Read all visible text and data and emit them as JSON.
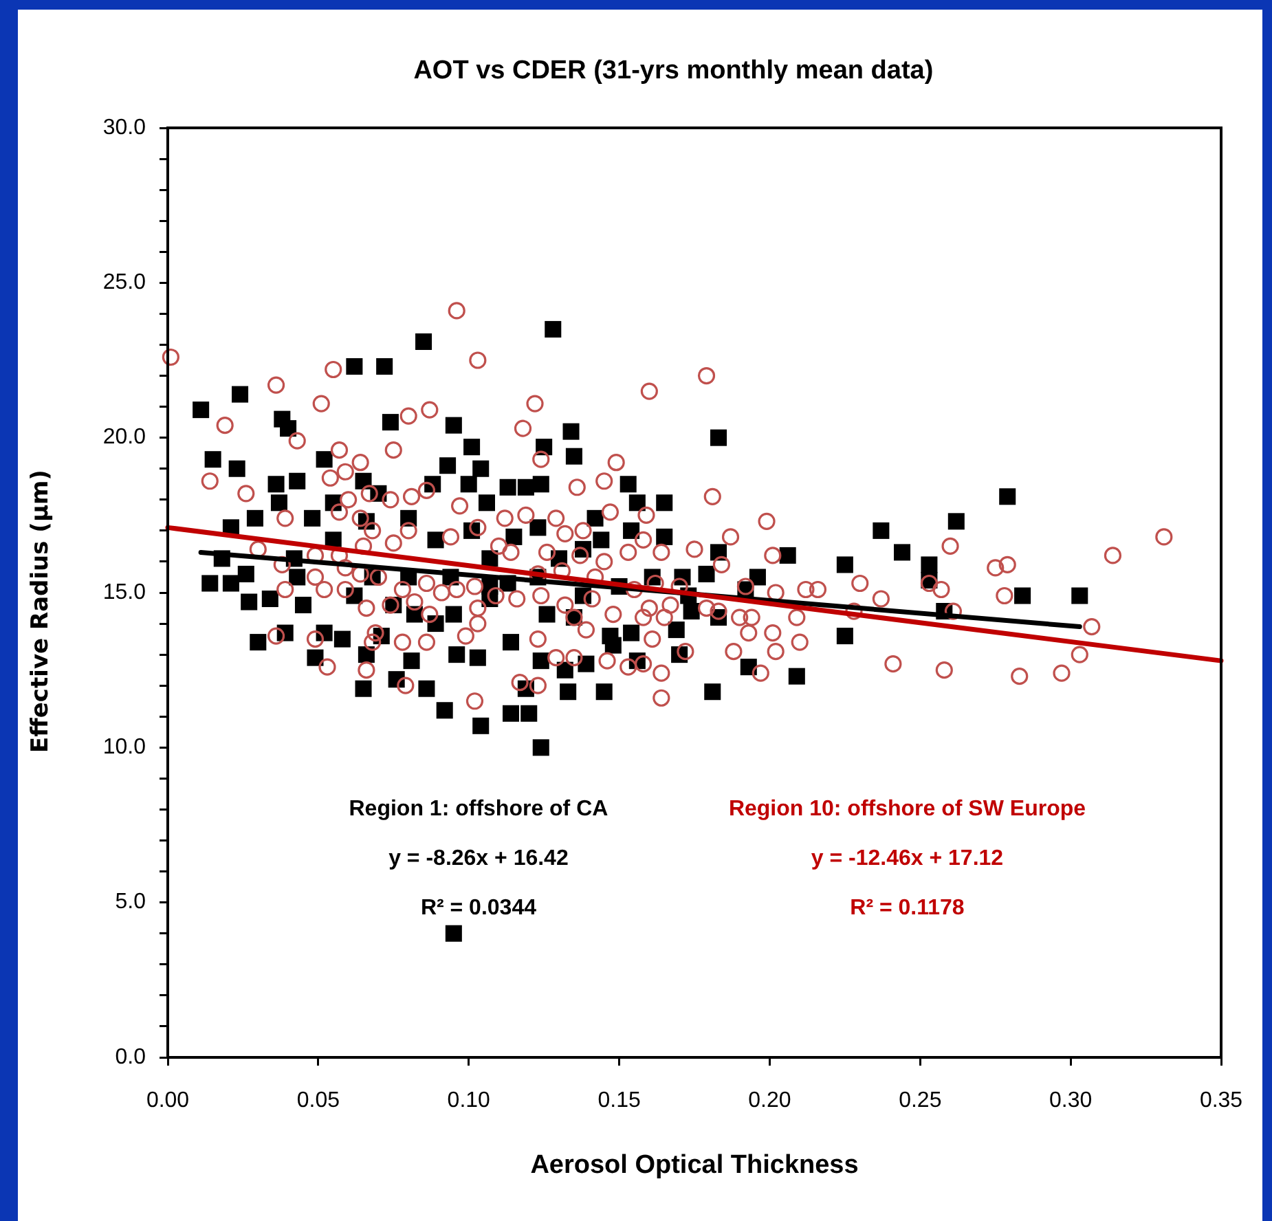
{
  "chart_data": {
    "type": "scatter",
    "title": "AOT vs CDER (31-yrs monthly mean data)",
    "xlabel": "Aerosol Optical Thickness",
    "ylabel": "Effective Radius (μm)",
    "annotations": [
      "Region 1: offshore of CA",
      "y = -8.26x + 16.42",
      "R² = 0.0344",
      "Region 10: offshore of SW Europe",
      "y = -12.46x + 17.12",
      "R² = 0.1178"
    ],
    "xlim": [
      0,
      0.35
    ],
    "ylim": [
      0,
      30
    ],
    "xticks": [
      {
        "value": 0,
        "label": "0.00"
      },
      0.05,
      {
        "value": 0.1,
        "label": "0.10"
      },
      0.15,
      {
        "value": 0.2,
        "label": "0.20"
      },
      0.25,
      {
        "value": 0.3,
        "label": "0.30"
      },
      0.35
    ],
    "yticks": [
      {
        "value": 0,
        "label": "0.0"
      },
      {
        "value": 1,
        "label": null
      },
      {
        "value": 2,
        "label": null
      },
      {
        "value": 3,
        "label": null
      },
      {
        "value": 4,
        "label": null
      },
      {
        "value": 5,
        "label": "5.0"
      },
      {
        "value": 6,
        "label": null
      },
      {
        "value": 7,
        "label": null
      },
      {
        "value": 8,
        "label": null
      },
      {
        "value": 9,
        "label": null
      },
      {
        "value": 10,
        "label": "10.0"
      },
      {
        "value": 11,
        "label": null
      },
      {
        "value": 12,
        "label": null
      },
      {
        "value": 13,
        "label": null
      },
      {
        "value": 14,
        "label": null
      },
      {
        "value": 15,
        "label": "15.0"
      },
      {
        "value": 16,
        "label": null
      },
      {
        "value": 17,
        "label": null
      },
      {
        "value": 18,
        "label": null
      },
      {
        "value": 19,
        "label": null
      },
      {
        "value": 20,
        "label": "20.0"
      },
      {
        "value": 21,
        "label": null
      },
      {
        "value": 22,
        "label": null
      },
      {
        "value": 23,
        "label": null
      },
      {
        "value": 24,
        "label": null
      },
      {
        "value": 25,
        "label": "25.0"
      },
      {
        "value": 26,
        "label": null
      },
      {
        "value": 27,
        "label": null
      },
      {
        "value": 28,
        "label": null
      },
      {
        "value": 29,
        "label": null
      },
      {
        "value": 30,
        "label": "30.0"
      }
    ],
    "series": [
      {
        "color": "#000000",
        "marker": "square",
        "x": [
          0.011,
          0.015,
          0.024,
          0.062,
          0.072,
          0.085,
          0.128,
          0.038,
          0.04,
          0.074,
          0.095,
          0.101,
          0.023,
          0.052,
          0.093,
          0.104,
          0.036,
          0.043,
          0.065,
          0.088,
          0.1,
          0.106,
          0.037,
          0.048,
          0.021,
          0.029,
          0.055,
          0.07,
          0.08,
          0.018,
          0.014,
          0.021,
          0.026,
          0.027,
          0.034,
          0.03,
          0.039,
          0.042,
          0.043,
          0.045,
          0.052,
          0.058,
          0.049,
          0.066,
          0.065,
          0.076,
          0.086,
          0.092,
          0.104,
          0.081,
          0.096,
          0.103,
          0.071,
          0.089,
          0.075,
          0.082,
          0.095,
          0.062,
          0.068,
          0.08,
          0.094,
          0.055,
          0.066,
          0.089,
          0.101,
          0.107,
          0.107,
          0.134,
          0.135,
          0.125,
          0.183,
          0.113,
          0.119,
          0.124,
          0.153,
          0.165,
          0.156,
          0.154,
          0.165,
          0.206,
          0.196,
          0.183,
          0.179,
          0.171,
          0.123,
          0.115,
          0.142,
          0.144,
          0.138,
          0.13,
          0.123,
          0.113,
          0.107,
          0.138,
          0.15,
          0.161,
          0.173,
          0.183,
          0.192,
          0.169,
          0.174,
          0.154,
          0.147,
          0.135,
          0.126,
          0.114,
          0.124,
          0.132,
          0.139,
          0.148,
          0.156,
          0.17,
          0.119,
          0.133,
          0.145,
          0.181,
          0.193,
          0.209,
          0.114,
          0.12,
          0.124,
          0.279,
          0.262,
          0.237,
          0.244,
          0.225,
          0.253,
          0.253,
          0.284,
          0.303,
          0.258,
          0.225,
          0.095
        ],
        "values": [
          20.9,
          19.3,
          21.4,
          22.3,
          22.3,
          23.1,
          23.5,
          20.6,
          20.3,
          20.5,
          20.4,
          19.7,
          19.0,
          19.3,
          19.1,
          19.0,
          18.5,
          18.6,
          18.6,
          18.5,
          18.5,
          17.9,
          17.9,
          17.4,
          17.1,
          17.4,
          17.9,
          18.2,
          17.4,
          16.1,
          15.3,
          15.3,
          15.6,
          14.7,
          14.8,
          13.4,
          13.7,
          16.1,
          15.5,
          14.6,
          13.7,
          13.5,
          12.9,
          13.0,
          11.9,
          12.2,
          11.9,
          11.2,
          10.7,
          12.8,
          13.0,
          12.9,
          13.6,
          14.0,
          14.6,
          14.3,
          14.3,
          14.9,
          15.5,
          15.5,
          15.5,
          16.7,
          17.3,
          16.7,
          17.0,
          16.1,
          14.8,
          20.2,
          19.4,
          19.7,
          20.0,
          18.4,
          18.4,
          18.5,
          18.5,
          17.9,
          17.9,
          17.0,
          16.8,
          16.2,
          15.5,
          16.3,
          15.6,
          15.5,
          17.1,
          16.8,
          17.4,
          16.7,
          16.4,
          16.1,
          15.5,
          15.3,
          15.2,
          14.9,
          15.2,
          15.5,
          14.9,
          14.2,
          15.1,
          13.8,
          14.4,
          13.7,
          13.6,
          14.2,
          14.3,
          13.4,
          12.8,
          12.5,
          12.7,
          13.3,
          12.8,
          13.0,
          11.9,
          11.8,
          11.8,
          11.8,
          12.6,
          12.3,
          11.1,
          11.1,
          10.0,
          18.1,
          17.3,
          17.0,
          16.3,
          15.9,
          15.9,
          15.4,
          14.9,
          14.9,
          14.4,
          13.6,
          4.0
        ]
      },
      {
        "color": "#c0504d",
        "marker": "circle",
        "x": [
          0.001,
          0.096,
          0.103,
          0.055,
          0.036,
          0.051,
          0.019,
          0.043,
          0.08,
          0.087,
          0.075,
          0.057,
          0.064,
          0.014,
          0.026,
          0.054,
          0.059,
          0.06,
          0.067,
          0.057,
          0.074,
          0.081,
          0.086,
          0.097,
          0.064,
          0.068,
          0.039,
          0.03,
          0.038,
          0.039,
          0.049,
          0.057,
          0.065,
          0.075,
          0.08,
          0.094,
          0.103,
          0.049,
          0.059,
          0.064,
          0.07,
          0.078,
          0.086,
          0.091,
          0.096,
          0.102,
          0.052,
          0.059,
          0.074,
          0.082,
          0.087,
          0.103,
          0.103,
          0.066,
          0.099,
          0.069,
          0.068,
          0.078,
          0.086,
          0.049,
          0.036,
          0.053,
          0.066,
          0.079,
          0.102,
          0.179,
          0.16,
          0.122,
          0.118,
          0.124,
          0.149,
          0.136,
          0.145,
          0.181,
          0.199,
          0.187,
          0.201,
          0.159,
          0.147,
          0.119,
          0.112,
          0.129,
          0.138,
          0.132,
          0.158,
          0.164,
          0.175,
          0.184,
          0.11,
          0.114,
          0.126,
          0.137,
          0.145,
          0.153,
          0.123,
          0.131,
          0.142,
          0.162,
          0.17,
          0.192,
          0.202,
          0.212,
          0.109,
          0.116,
          0.124,
          0.132,
          0.141,
          0.148,
          0.155,
          0.16,
          0.167,
          0.179,
          0.183,
          0.19,
          0.194,
          0.193,
          0.201,
          0.209,
          0.21,
          0.202,
          0.123,
          0.135,
          0.139,
          0.158,
          0.165,
          0.161,
          0.129,
          0.135,
          0.146,
          0.153,
          0.158,
          0.164,
          0.172,
          0.188,
          0.197,
          0.117,
          0.123,
          0.164,
          0.331,
          0.314,
          0.26,
          0.279,
          0.275,
          0.278,
          0.253,
          0.257,
          0.261,
          0.23,
          0.237,
          0.228,
          0.216,
          0.307,
          0.303,
          0.297,
          0.283,
          0.258,
          0.241
        ],
        "values": [
          22.6,
          24.1,
          22.5,
          22.2,
          21.7,
          21.1,
          20.4,
          19.9,
          20.7,
          20.9,
          19.6,
          19.6,
          19.2,
          18.6,
          18.2,
          18.7,
          18.9,
          18.0,
          18.2,
          17.6,
          18.0,
          18.1,
          18.3,
          17.8,
          17.4,
          17.0,
          17.4,
          16.4,
          15.9,
          15.1,
          16.2,
          16.2,
          16.5,
          16.6,
          17.0,
          16.8,
          17.1,
          15.5,
          15.8,
          15.6,
          15.5,
          15.1,
          15.3,
          15.0,
          15.1,
          15.2,
          15.1,
          15.1,
          14.6,
          14.7,
          14.3,
          14.5,
          14.0,
          14.5,
          13.6,
          13.7,
          13.4,
          13.4,
          13.4,
          13.5,
          13.6,
          12.6,
          12.5,
          12.0,
          11.5,
          22.0,
          21.5,
          21.1,
          20.3,
          19.3,
          19.2,
          18.4,
          18.6,
          18.1,
          17.3,
          16.8,
          16.2,
          17.5,
          17.6,
          17.5,
          17.4,
          17.4,
          17.0,
          16.9,
          16.7,
          16.3,
          16.4,
          15.9,
          16.5,
          16.3,
          16.3,
          16.2,
          16.0,
          16.3,
          15.6,
          15.7,
          15.5,
          15.3,
          15.2,
          15.2,
          15.0,
          15.1,
          14.9,
          14.8,
          14.9,
          14.6,
          14.8,
          14.3,
          15.1,
          14.5,
          14.6,
          14.5,
          14.4,
          14.2,
          14.2,
          13.7,
          13.7,
          14.2,
          13.4,
          13.1,
          13.5,
          14.2,
          13.8,
          14.2,
          14.2,
          13.5,
          12.9,
          12.9,
          12.8,
          12.6,
          12.7,
          12.4,
          13.1,
          13.1,
          12.4,
          12.1,
          12.0,
          11.6,
          16.8,
          16.2,
          16.5,
          15.9,
          15.8,
          14.9,
          15.3,
          15.1,
          14.4,
          15.3,
          14.8,
          14.4,
          15.1,
          13.9,
          13.0,
          12.4,
          12.3,
          12.5,
          12.7
        ]
      },
      {
        "type": "line",
        "color": "#000000",
        "x": [
          0.011,
          0.303
        ],
        "values": [
          16.3,
          13.9
        ]
      },
      {
        "type": "line",
        "color": "#c00000",
        "x": [
          0,
          0.35
        ],
        "values": [
          17.1,
          12.8
        ]
      }
    ]
  }
}
